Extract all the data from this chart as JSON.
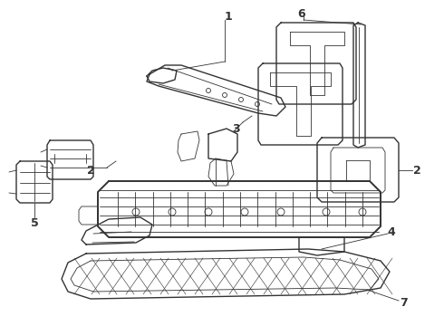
{
  "background_color": "#ffffff",
  "line_color": "#333333",
  "fig_width": 4.9,
  "fig_height": 3.6,
  "dpi": 100,
  "label_fontsize": 9
}
